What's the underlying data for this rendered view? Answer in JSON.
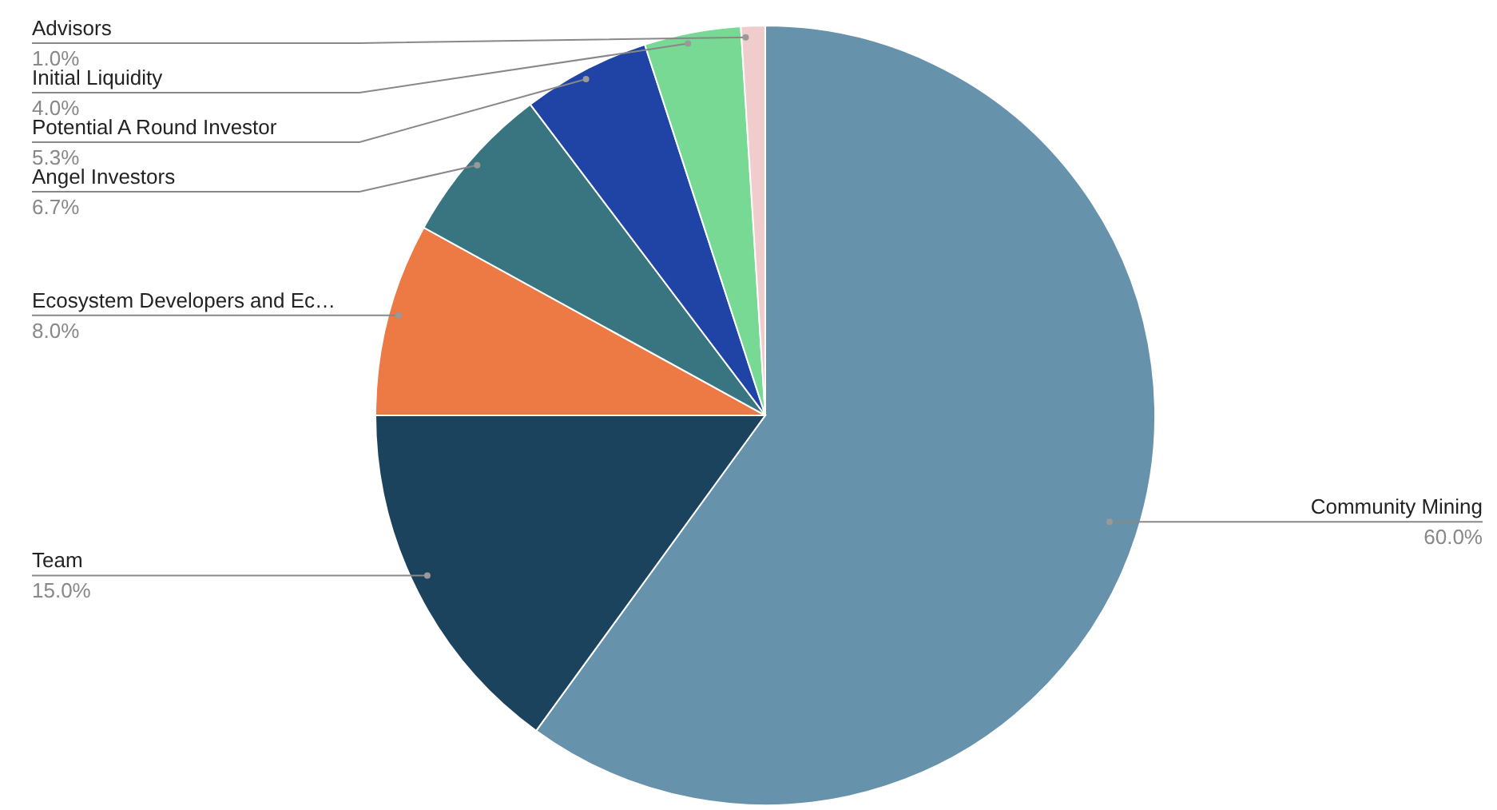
{
  "chart_data": {
    "type": "pie",
    "categories": [
      "Community Mining",
      "Team",
      "Ecosystem Developers and Ec…",
      "Angel Investors",
      "Potential A Round Investor",
      "Initial Liquidity",
      "Advisors"
    ],
    "values": [
      60,
      15,
      8,
      6.7,
      5.3,
      4,
      1
    ],
    "colors": [
      "#6792ab",
      "#1c435e",
      "#ed7a45",
      "#387581",
      "#2044a5",
      "#77d994",
      "#f0cccc"
    ],
    "value_labels": [
      "60.0%",
      "15.0%",
      "8.0%",
      "6.7%",
      "5.3%",
      "4.0%",
      "1.0%"
    ]
  }
}
